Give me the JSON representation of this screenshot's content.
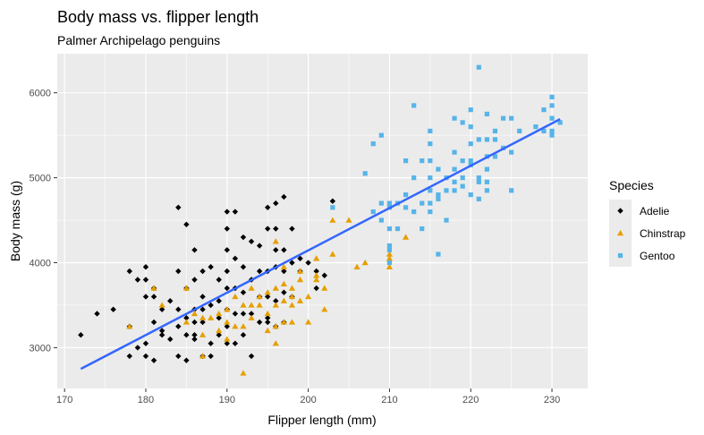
{
  "chart_data": {
    "type": "scatter",
    "title": "Body mass vs. flipper length",
    "subtitle": "Palmer Archipelago penguins",
    "xlabel": "Flipper length (mm)",
    "ylabel": "Body mass (g)",
    "xlim": [
      169.1,
      234.4
    ],
    "ylim": [
      2520,
      6460
    ],
    "x_ticks": [
      170,
      180,
      190,
      200,
      210,
      220,
      230
    ],
    "y_ticks": [
      3000,
      4000,
      5000,
      6000
    ],
    "grid": true,
    "background": "#EBEBEB",
    "legend": {
      "title": "Species",
      "position": "right",
      "entries": [
        {
          "label": "Adelie",
          "color": "#000000",
          "shape": "diamond"
        },
        {
          "label": "Chinstrap",
          "color": "#E69F00",
          "shape": "triangle"
        },
        {
          "label": "Gentoo",
          "color": "#56B4E9",
          "shape": "square"
        }
      ]
    },
    "trendline": {
      "color": "#3366FF",
      "x": [
        172,
        231
      ],
      "y": [
        2750,
        5690
      ]
    },
    "series": [
      {
        "name": "Adelie",
        "color": "#000000",
        "shape": "diamond",
        "points": [
          [
            172,
            3150
          ],
          [
            174,
            3400
          ],
          [
            176,
            3450
          ],
          [
            178,
            3900
          ],
          [
            178,
            3250
          ],
          [
            178,
            2900
          ],
          [
            179,
            3800
          ],
          [
            179,
            3000
          ],
          [
            180,
            3950
          ],
          [
            180,
            3800
          ],
          [
            180,
            3600
          ],
          [
            180,
            3050
          ],
          [
            180,
            2900
          ],
          [
            181,
            3700
          ],
          [
            181,
            3600
          ],
          [
            181,
            3300
          ],
          [
            181,
            2850
          ],
          [
            182,
            3450
          ],
          [
            182,
            3200
          ],
          [
            182,
            3150
          ],
          [
            183,
            3550
          ],
          [
            183,
            3100
          ],
          [
            184,
            4650
          ],
          [
            184,
            3900
          ],
          [
            184,
            3450
          ],
          [
            184,
            3250
          ],
          [
            184,
            2900
          ],
          [
            185,
            4450
          ],
          [
            185,
            3700
          ],
          [
            185,
            3350
          ],
          [
            185,
            3150
          ],
          [
            185,
            2850
          ],
          [
            186,
            4150
          ],
          [
            186,
            3800
          ],
          [
            186,
            3450
          ],
          [
            186,
            3300
          ],
          [
            186,
            3150
          ],
          [
            186,
            3100
          ],
          [
            187,
            3900
          ],
          [
            187,
            3600
          ],
          [
            187,
            3450
          ],
          [
            187,
            3300
          ],
          [
            187,
            2900
          ],
          [
            188,
            3950
          ],
          [
            188,
            3500
          ],
          [
            188,
            3050
          ],
          [
            188,
            2900
          ],
          [
            189,
            3800
          ],
          [
            189,
            3550
          ],
          [
            189,
            3350
          ],
          [
            189,
            3150
          ],
          [
            190,
            4600
          ],
          [
            190,
            4400
          ],
          [
            190,
            4150
          ],
          [
            190,
            3900
          ],
          [
            190,
            3700
          ],
          [
            190,
            3450
          ],
          [
            190,
            3250
          ],
          [
            190,
            3050
          ],
          [
            191,
            4600
          ],
          [
            191,
            4050
          ],
          [
            191,
            3700
          ],
          [
            191,
            3400
          ],
          [
            191,
            3050
          ],
          [
            192,
            4300
          ],
          [
            192,
            3950
          ],
          [
            192,
            3650
          ],
          [
            192,
            3400
          ],
          [
            192,
            3150
          ],
          [
            193,
            4250
          ],
          [
            193,
            3800
          ],
          [
            193,
            3400
          ],
          [
            193,
            2900
          ],
          [
            194,
            4200
          ],
          [
            194,
            3900
          ],
          [
            194,
            3600
          ],
          [
            194,
            3300
          ],
          [
            195,
            4650
          ],
          [
            195,
            4400
          ],
          [
            195,
            3900
          ],
          [
            195,
            3600
          ],
          [
            195,
            3350
          ],
          [
            195,
            3300
          ],
          [
            196,
            4700
          ],
          [
            196,
            4400
          ],
          [
            196,
            4150
          ],
          [
            196,
            3950
          ],
          [
            196,
            3550
          ],
          [
            196,
            3250
          ],
          [
            197,
            4775
          ],
          [
            197,
            4150
          ],
          [
            197,
            3900
          ],
          [
            197,
            3650
          ],
          [
            197,
            3300
          ],
          [
            198,
            4400
          ],
          [
            198,
            4000
          ],
          [
            198,
            3600
          ],
          [
            199,
            4050
          ],
          [
            199,
            3900
          ],
          [
            200,
            4000
          ],
          [
            201,
            3900
          ],
          [
            201,
            3700
          ],
          [
            202,
            3850
          ],
          [
            203,
            4725
          ]
        ]
      },
      {
        "name": "Chinstrap",
        "color": "#E69F00",
        "shape": "triangle",
        "points": [
          [
            178,
            3250
          ],
          [
            181,
            3700
          ],
          [
            182,
            3500
          ],
          [
            185,
            3700
          ],
          [
            185,
            3300
          ],
          [
            186,
            3400
          ],
          [
            187,
            3350
          ],
          [
            187,
            3150
          ],
          [
            187,
            2900
          ],
          [
            188,
            3350
          ],
          [
            189,
            3400
          ],
          [
            189,
            3200
          ],
          [
            190,
            3450
          ],
          [
            190,
            3300
          ],
          [
            190,
            3100
          ],
          [
            191,
            3600
          ],
          [
            191,
            3250
          ],
          [
            192,
            3500
          ],
          [
            192,
            3250
          ],
          [
            192,
            2700
          ],
          [
            193,
            3700
          ],
          [
            193,
            3500
          ],
          [
            193,
            3350
          ],
          [
            194,
            3600
          ],
          [
            194,
            3500
          ],
          [
            195,
            3650
          ],
          [
            195,
            3400
          ],
          [
            195,
            3200
          ],
          [
            196,
            4250
          ],
          [
            196,
            3700
          ],
          [
            196,
            3500
          ],
          [
            196,
            3250
          ],
          [
            196,
            3050
          ],
          [
            197,
            3950
          ],
          [
            197,
            3750
          ],
          [
            197,
            3550
          ],
          [
            197,
            3300
          ],
          [
            198,
            3700
          ],
          [
            198,
            3600
          ],
          [
            198,
            3500
          ],
          [
            198,
            3300
          ],
          [
            199,
            3900
          ],
          [
            199,
            3800
          ],
          [
            199,
            3550
          ],
          [
            200,
            3600
          ],
          [
            200,
            3300
          ],
          [
            201,
            4050
          ],
          [
            201,
            3850
          ],
          [
            201,
            3800
          ],
          [
            202,
            3700
          ],
          [
            202,
            3450
          ],
          [
            203,
            4500
          ],
          [
            203,
            4100
          ],
          [
            205,
            4500
          ],
          [
            206,
            3950
          ],
          [
            207,
            4000
          ],
          [
            210,
            4100
          ],
          [
            210,
            3950
          ],
          [
            210,
            4050
          ],
          [
            212,
            4300
          ]
        ]
      },
      {
        "name": "Gentoo",
        "color": "#56B4E9",
        "shape": "square",
        "points": [
          [
            203,
            4650
          ],
          [
            207,
            5050
          ],
          [
            208,
            5400
          ],
          [
            208,
            4600
          ],
          [
            209,
            5500
          ],
          [
            209,
            4700
          ],
          [
            209,
            4500
          ],
          [
            210,
            4650
          ],
          [
            210,
            4400
          ],
          [
            210,
            4150
          ],
          [
            210,
            4000
          ],
          [
            210,
            4700
          ],
          [
            210,
            4200
          ],
          [
            211,
            4700
          ],
          [
            211,
            4400
          ],
          [
            212,
            5200
          ],
          [
            212,
            4800
          ],
          [
            212,
            4650
          ],
          [
            213,
            5850
          ],
          [
            213,
            5000
          ],
          [
            213,
            4600
          ],
          [
            214,
            5200
          ],
          [
            214,
            4700
          ],
          [
            214,
            4400
          ],
          [
            215,
            5550
          ],
          [
            215,
            5400
          ],
          [
            215,
            5200
          ],
          [
            215,
            5000
          ],
          [
            215,
            4850
          ],
          [
            215,
            4700
          ],
          [
            215,
            4600
          ],
          [
            216,
            5100
          ],
          [
            216,
            4800
          ],
          [
            216,
            4750
          ],
          [
            216,
            4100
          ],
          [
            217,
            5000
          ],
          [
            217,
            4850
          ],
          [
            217,
            4500
          ],
          [
            218,
            5700
          ],
          [
            218,
            5300
          ],
          [
            218,
            5100
          ],
          [
            218,
            4950
          ],
          [
            218,
            4850
          ],
          [
            219,
            5650
          ],
          [
            219,
            5200
          ],
          [
            219,
            5000
          ],
          [
            219,
            4900
          ],
          [
            220,
            5800
          ],
          [
            220,
            5600
          ],
          [
            220,
            5400
          ],
          [
            220,
            5200
          ],
          [
            220,
            5150
          ],
          [
            220,
            4800
          ],
          [
            221,
            6300
          ],
          [
            221,
            5450
          ],
          [
            221,
            5000
          ],
          [
            221,
            4950
          ],
          [
            221,
            4750
          ],
          [
            222,
            5750
          ],
          [
            222,
            5450
          ],
          [
            222,
            5250
          ],
          [
            222,
            5100
          ],
          [
            222,
            4950
          ],
          [
            222,
            4850
          ],
          [
            223,
            5550
          ],
          [
            223,
            5450
          ],
          [
            223,
            5250
          ],
          [
            224,
            5700
          ],
          [
            224,
            5350
          ],
          [
            225,
            5700
          ],
          [
            225,
            5300
          ],
          [
            225,
            4850
          ],
          [
            226,
            5550
          ],
          [
            228,
            5600
          ],
          [
            229,
            5800
          ],
          [
            229,
            5550
          ],
          [
            230,
            5950
          ],
          [
            230,
            5700
          ],
          [
            230,
            5550
          ],
          [
            230,
            5500
          ],
          [
            230,
            5850
          ],
          [
            231,
            5650
          ]
        ]
      }
    ]
  }
}
